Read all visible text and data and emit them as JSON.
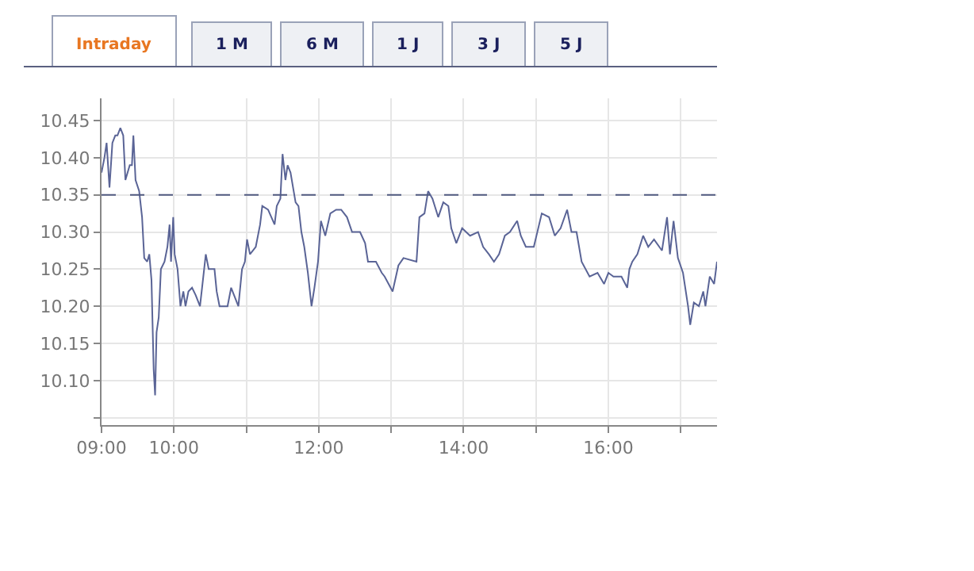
{
  "chart_data": {
    "type": "line",
    "annotations": [
      "Intraday",
      "1 M",
      "6 M",
      "1 J",
      "3 J",
      "5 J"
    ],
    "x": [
      9.0,
      9.04,
      9.07,
      9.11,
      9.15,
      9.19,
      9.22,
      9.26,
      9.3,
      9.33,
      9.39,
      9.42,
      9.44,
      9.47,
      9.52,
      9.56,
      9.59,
      9.63,
      9.66,
      9.69,
      9.72,
      9.74,
      9.76,
      9.79,
      9.82,
      9.87,
      9.91,
      9.94,
      9.96,
      9.99,
      10.01,
      10.05,
      10.09,
      10.13,
      10.16,
      10.2,
      10.25,
      10.3,
      10.36,
      10.4,
      10.44,
      10.48,
      10.56,
      10.59,
      10.63,
      10.68,
      10.74,
      10.79,
      10.83,
      10.89,
      10.94,
      10.98,
      11.01,
      11.05,
      11.13,
      11.19,
      11.22,
      11.3,
      11.39,
      11.42,
      11.47,
      11.5,
      11.54,
      11.57,
      11.61,
      11.68,
      11.72,
      11.76,
      11.8,
      11.85,
      11.9,
      11.94,
      11.99,
      12.03,
      12.09,
      12.16,
      12.24,
      12.31,
      12.39,
      12.46,
      12.57,
      12.64,
      12.68,
      12.79,
      12.87,
      12.91,
      13.02,
      13.1,
      13.17,
      13.35,
      13.39,
      13.46,
      13.51,
      13.57,
      13.65,
      13.72,
      13.79,
      13.83,
      13.9,
      13.98,
      14.09,
      14.2,
      14.27,
      14.35,
      14.42,
      14.49,
      14.57,
      14.64,
      14.74,
      14.79,
      14.86,
      14.97,
      15.08,
      15.18,
      15.26,
      15.34,
      15.43,
      15.49,
      15.56,
      15.63,
      15.74,
      15.85,
      15.94,
      16.0,
      16.07,
      16.18,
      16.26,
      16.29,
      16.33,
      16.4,
      16.48,
      16.55,
      16.63,
      16.74,
      16.81,
      16.85,
      16.9,
      16.96,
      17.03,
      17.1,
      17.13,
      17.18,
      17.25,
      17.31,
      17.34,
      17.4,
      17.46,
      17.5
    ],
    "series": [
      {
        "color": "#5a6496",
        "values": [
          10.38,
          10.4,
          10.42,
          10.36,
          10.42,
          10.43,
          10.43,
          10.44,
          10.43,
          10.37,
          10.39,
          10.39,
          10.43,
          10.37,
          10.355,
          10.32,
          10.265,
          10.26,
          10.27,
          10.235,
          10.115,
          10.08,
          10.165,
          10.185,
          10.25,
          10.26,
          10.28,
          10.31,
          10.26,
          10.32,
          10.27,
          10.25,
          10.2,
          10.22,
          10.2,
          10.22,
          10.225,
          10.215,
          10.2,
          10.235,
          10.27,
          10.25,
          10.25,
          10.22,
          10.2,
          10.2,
          10.2,
          10.225,
          10.215,
          10.2,
          10.25,
          10.26,
          10.29,
          10.27,
          10.28,
          10.31,
          10.335,
          10.33,
          10.31,
          10.335,
          10.345,
          10.405,
          10.37,
          10.39,
          10.38,
          10.34,
          10.335,
          10.3,
          10.28,
          10.245,
          10.2,
          10.225,
          10.26,
          10.315,
          10.295,
          10.325,
          10.33,
          10.33,
          10.32,
          10.3,
          10.3,
          10.285,
          10.26,
          10.26,
          10.245,
          10.24,
          10.22,
          10.255,
          10.265,
          10.26,
          10.32,
          10.325,
          10.355,
          10.345,
          10.32,
          10.34,
          10.335,
          10.305,
          10.285,
          10.305,
          10.295,
          10.3,
          10.28,
          10.27,
          10.26,
          10.27,
          10.295,
          10.3,
          10.315,
          10.295,
          10.28,
          10.28,
          10.325,
          10.32,
          10.295,
          10.305,
          10.33,
          10.3,
          10.3,
          10.26,
          10.24,
          10.245,
          10.23,
          10.245,
          10.24,
          10.24,
          10.225,
          10.25,
          10.26,
          10.27,
          10.295,
          10.28,
          10.29,
          10.275,
          10.32,
          10.27,
          10.315,
          10.265,
          10.245,
          10.2,
          10.175,
          10.205,
          10.2,
          10.22,
          10.2,
          10.24,
          10.23,
          10.26
        ]
      }
    ],
    "xlim": [
      9,
      17.5
    ],
    "xticks": [
      {
        "value": 9,
        "label": "09:00"
      },
      {
        "value": 10,
        "label": "10:00"
      },
      {
        "value": 11,
        "label": null
      },
      {
        "value": 12,
        "label": "12:00"
      },
      {
        "value": 13,
        "label": null
      },
      {
        "value": 14,
        "label": "14:00"
      },
      {
        "value": 15,
        "label": null
      },
      {
        "value": 16,
        "label": "16:00"
      },
      {
        "value": 17,
        "label": null
      }
    ],
    "ylim": [
      10.04,
      10.48
    ],
    "yticks": [
      {
        "value": 10.05,
        "label": null
      },
      {
        "value": 10.1,
        "label": "10.10"
      },
      10.15,
      {
        "value": 10.2,
        "label": "10.20"
      },
      10.25,
      {
        "value": 10.3,
        "label": "10.30"
      },
      10.35,
      {
        "value": 10.4,
        "label": "10.40"
      },
      10.45
    ],
    "ref_lines": [
      {
        "axis": "y",
        "value": 10.35,
        "color": "#505a80",
        "line_style": "dashed"
      }
    ],
    "grid": true,
    "line_style": "solid",
    "marker": "none"
  }
}
